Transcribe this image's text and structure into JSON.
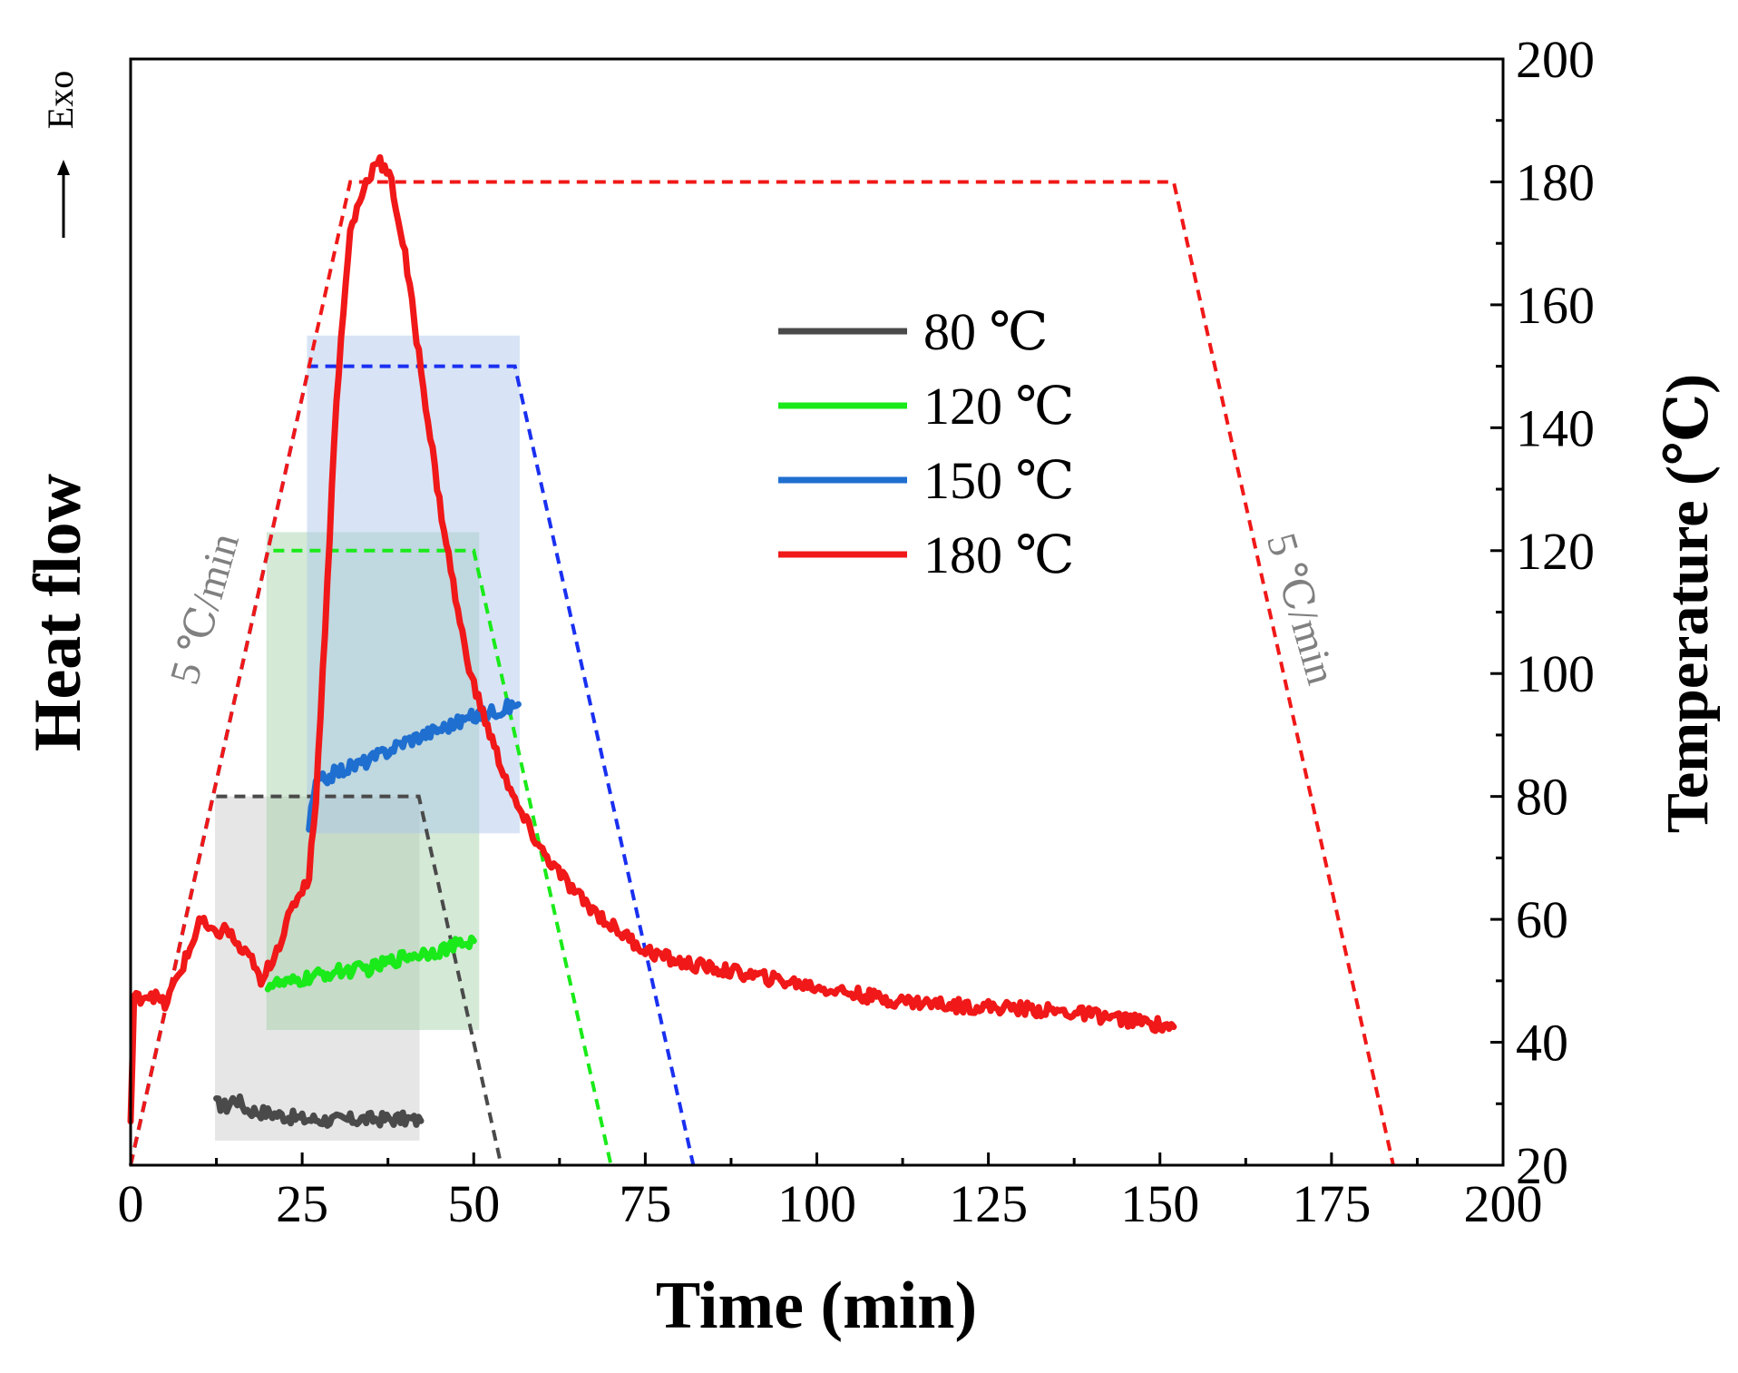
{
  "chart_data": {
    "type": "line",
    "xlabel": "Time (min)",
    "ylabel_left": "Heat flow",
    "ylabel_right": "Temperature (℃)",
    "exo_label": "Exo",
    "rate_labels": [
      "5 ℃/min",
      "5 ℃/min"
    ],
    "xlim": [
      0,
      200
    ],
    "ylim_right": [
      20,
      200
    ],
    "x_ticks": [
      0,
      25,
      50,
      75,
      100,
      125,
      150,
      175,
      200
    ],
    "y_ticks_right": [
      20,
      40,
      60,
      80,
      100,
      120,
      140,
      160,
      180,
      200
    ],
    "legend": [
      {
        "name": "80 ℃",
        "color": "#4a4a4a"
      },
      {
        "name": "120 ℃",
        "color": "#1aea1a"
      },
      {
        "name": "150 ℃",
        "color": "#1f6fd0"
      },
      {
        "name": "180 ℃",
        "color": "#f01818"
      }
    ],
    "temperature_profiles": [
      {
        "name": "80 ℃",
        "color": "#4a4a4a",
        "points": [
          [
            0,
            20
          ],
          [
            12,
            80
          ],
          [
            42,
            80
          ],
          [
            54,
            20
          ]
        ]
      },
      {
        "name": "120 ℃",
        "color": "#1aea1a",
        "points": [
          [
            0,
            20
          ],
          [
            20,
            120
          ],
          [
            50,
            120
          ],
          [
            70,
            20
          ]
        ]
      },
      {
        "name": "150 ℃",
        "color": "#1a30f0",
        "points": [
          [
            0,
            20
          ],
          [
            26,
            150
          ],
          [
            56,
            150
          ],
          [
            82,
            20
          ]
        ]
      },
      {
        "name": "180 ℃",
        "color": "#f01818",
        "points": [
          [
            0,
            20
          ],
          [
            32,
            180
          ],
          [
            152,
            180
          ],
          [
            184,
            20
          ]
        ]
      }
    ],
    "isothermal_regions": [
      {
        "name": "80 ℃",
        "color": "#c8c8c8",
        "x": [
          12.3,
          42.1
        ],
        "y": [
          24,
          80
        ]
      },
      {
        "name": "120 ℃",
        "color": "#9fcfa4",
        "x": [
          19.8,
          50.8
        ],
        "y": [
          42,
          123
        ]
      },
      {
        "name": "150 ℃",
        "color": "#a9c4ea",
        "x": [
          25.7,
          56.7
        ],
        "y": [
          74,
          155
        ]
      }
    ],
    "heat_flow_series": [
      {
        "name": "80 ℃",
        "color": "#4a4a4a",
        "points": [
          [
            12.5,
            30
          ],
          [
            14,
            29.5
          ],
          [
            15.2,
            31
          ],
          [
            17,
            29
          ],
          [
            20,
            28.5
          ],
          [
            25,
            27.5
          ],
          [
            30,
            27.3
          ],
          [
            35,
            27.5
          ],
          [
            40,
            27.5
          ],
          [
            42.3,
            27.2
          ]
        ]
      },
      {
        "name": "120 ℃",
        "color": "#1aea1a",
        "points": [
          [
            20,
            49.5
          ],
          [
            23,
            49.5
          ],
          [
            26,
            50.5
          ],
          [
            30,
            51.5
          ],
          [
            35,
            52
          ],
          [
            40,
            54
          ],
          [
            45,
            55
          ],
          [
            50,
            56.5
          ]
        ]
      },
      {
        "name": "150 ℃",
        "color": "#1f6fd0",
        "points": [
          [
            26,
            75
          ],
          [
            27,
            82
          ],
          [
            30,
            84
          ],
          [
            35,
            86
          ],
          [
            40,
            89
          ],
          [
            45,
            91
          ],
          [
            50,
            93
          ],
          [
            56.5,
            95
          ]
        ]
      },
      {
        "name": "180 ℃",
        "color": "#f01818",
        "points": [
          [
            0,
            27
          ],
          [
            0.5,
            47
          ],
          [
            3,
            48
          ],
          [
            5,
            46
          ],
          [
            7,
            51
          ],
          [
            9,
            56
          ],
          [
            10,
            60
          ],
          [
            12,
            57.5
          ],
          [
            14,
            58.5
          ],
          [
            16,
            55
          ],
          [
            18,
            53
          ],
          [
            19,
            49
          ],
          [
            20,
            52
          ],
          [
            22,
            57
          ],
          [
            24,
            63
          ],
          [
            26,
            67
          ],
          [
            27,
            80
          ],
          [
            28,
            100
          ],
          [
            30,
            145
          ],
          [
            32,
            172
          ],
          [
            34,
            179
          ],
          [
            36,
            184
          ],
          [
            38,
            180
          ],
          [
            40,
            168
          ],
          [
            42,
            152
          ],
          [
            45,
            128
          ],
          [
            48,
            108
          ],
          [
            50,
            98
          ],
          [
            53,
            88
          ],
          [
            56,
            79
          ],
          [
            60,
            71
          ],
          [
            65,
            64
          ],
          [
            70,
            59
          ],
          [
            75,
            55
          ],
          [
            80,
            53
          ],
          [
            90,
            51
          ],
          [
            100,
            49
          ],
          [
            110,
            47
          ],
          [
            120,
            46
          ],
          [
            130,
            45.5
          ],
          [
            140,
            44.5
          ],
          [
            152,
            42.5
          ]
        ]
      }
    ]
  }
}
